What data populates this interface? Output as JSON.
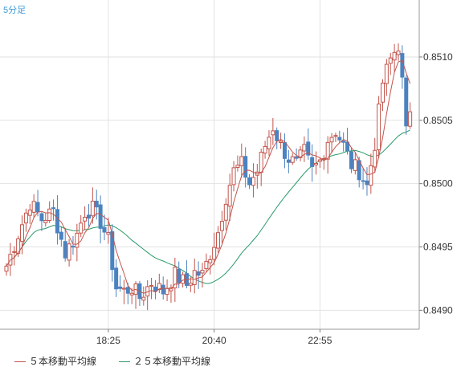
{
  "chart_data": {
    "type": "candlestick",
    "timeframe_label": "5分足",
    "y_ticks": [
      "0.8510",
      "0.8505",
      "0.8500",
      "0.8495",
      "0.8490"
    ],
    "y_tick_values": [
      0.851,
      0.8505,
      0.85,
      0.8495,
      0.849
    ],
    "ylim": [
      0.84885,
      0.85145
    ],
    "x_ticks": [
      {
        "label": "18:25",
        "index": 26
      },
      {
        "label": "20:40",
        "index": 53
      },
      {
        "label": "22:55",
        "index": 80
      }
    ],
    "candle_count": 104,
    "up_color": "#c3554c",
    "down_color": "#4b83c0",
    "legend": [
      {
        "label": "５本移動平均線",
        "color": "#c3554c"
      },
      {
        "label": "２５本移動平均線",
        "color": "#2a9a6a"
      }
    ],
    "grid": true,
    "close_anchors": [
      [
        0,
        0.84935
      ],
      [
        3,
        0.8496
      ],
      [
        6,
        0.84985
      ],
      [
        9,
        0.84972
      ],
      [
        12,
        0.84978
      ],
      [
        15,
        0.84945
      ],
      [
        18,
        0.8496
      ],
      [
        20,
        0.84978
      ],
      [
        22,
        0.8498
      ],
      [
        24,
        0.8497
      ],
      [
        26,
        0.84955
      ],
      [
        28,
        0.84918
      ],
      [
        30,
        0.84915
      ],
      [
        32,
        0.84918
      ],
      [
        34,
        0.8491
      ],
      [
        37,
        0.84922
      ],
      [
        40,
        0.84915
      ],
      [
        43,
        0.84928
      ],
      [
        46,
        0.8492
      ],
      [
        48,
        0.8493
      ],
      [
        50,
        0.84928
      ],
      [
        52,
        0.84945
      ],
      [
        54,
        0.84962
      ],
      [
        56,
        0.8499
      ],
      [
        58,
        0.8501
      ],
      [
        60,
        0.85015
      ],
      [
        62,
        0.85
      ],
      [
        64,
        0.8501
      ],
      [
        66,
        0.8503
      ],
      [
        68,
        0.85045
      ],
      [
        70,
        0.8503
      ],
      [
        72,
        0.8502
      ],
      [
        74,
        0.85015
      ],
      [
        76,
        0.85025
      ],
      [
        78,
        0.8501
      ],
      [
        80,
        0.85018
      ],
      [
        82,
        0.85035
      ],
      [
        84,
        0.85042
      ],
      [
        86,
        0.8503
      ],
      [
        88,
        0.85015
      ],
      [
        90,
        0.8501
      ],
      [
        92,
        0.84998
      ],
      [
        94,
        0.85032
      ],
      [
        96,
        0.8508
      ],
      [
        98,
        0.85098
      ],
      [
        100,
        0.8511
      ],
      [
        101,
        0.8508
      ],
      [
        102,
        0.8504
      ],
      [
        103,
        0.8506
      ]
    ],
    "highs_lows": {
      "max_high": 0.85135,
      "min_low": 0.84905
    }
  }
}
